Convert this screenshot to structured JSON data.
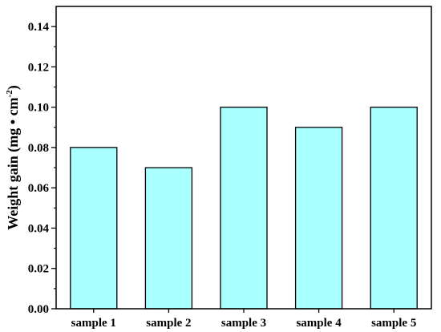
{
  "chart_data": {
    "type": "bar",
    "categories": [
      "sample 1",
      "sample 2",
      "sample 3",
      "sample 4",
      "sample 5"
    ],
    "values": [
      0.08,
      0.07,
      0.1,
      0.09,
      0.1
    ],
    "ylabel": "Weight gain (mg • cm",
    "ylabel_sup": "-2",
    "ylabel_close": ")",
    "xlabel": "",
    "ylim": [
      0,
      0.15
    ],
    "yticks": [
      "0.00",
      "0.02",
      "0.04",
      "0.06",
      "0.08",
      "0.10",
      "0.12",
      "0.14"
    ],
    "ytick_values": [
      0,
      0.02,
      0.04,
      0.06,
      0.08,
      0.1,
      0.12,
      0.14
    ],
    "bar_color": "#aaffff",
    "edge_color": "#000000",
    "grid": false
  }
}
